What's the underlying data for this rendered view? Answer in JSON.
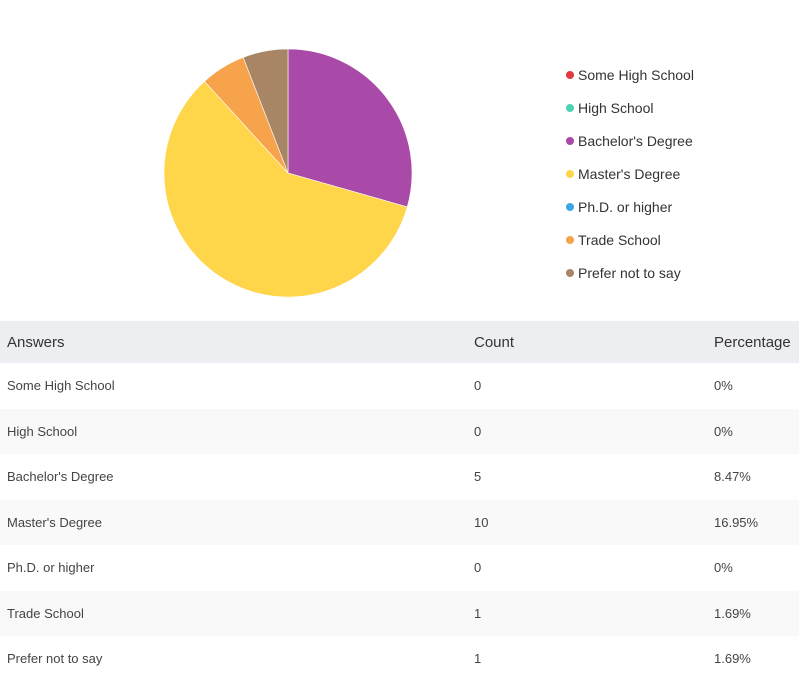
{
  "chart_data": {
    "type": "pie",
    "categories": [
      "Some High School",
      "High School",
      "Bachelor's Degree",
      "Master's Degree",
      "Ph.D. or higher",
      "Trade School",
      "Prefer not to say"
    ],
    "values": [
      0,
      0,
      5,
      10,
      0,
      1,
      1
    ],
    "colors": [
      "#e03a3e",
      "#4fd1b5",
      "#a94aa8",
      "#ffd54a",
      "#3aa7e0",
      "#f7a34c",
      "#a88565"
    ],
    "legend_position": "right"
  },
  "table": {
    "headers": {
      "answer": "Answers",
      "count": "Count",
      "percentage": "Percentage"
    },
    "rows": [
      {
        "answer": "Some High School",
        "count": "0",
        "percentage": "0%"
      },
      {
        "answer": "High School",
        "count": "0",
        "percentage": "0%"
      },
      {
        "answer": "Bachelor's Degree",
        "count": "5",
        "percentage": "8.47%"
      },
      {
        "answer": "Master's Degree",
        "count": "10",
        "percentage": "16.95%"
      },
      {
        "answer": "Ph.D. or higher",
        "count": "0",
        "percentage": "0%"
      },
      {
        "answer": "Trade School",
        "count": "1",
        "percentage": "1.69%"
      },
      {
        "answer": "Prefer not to say",
        "count": "1",
        "percentage": "1.69%"
      }
    ]
  }
}
